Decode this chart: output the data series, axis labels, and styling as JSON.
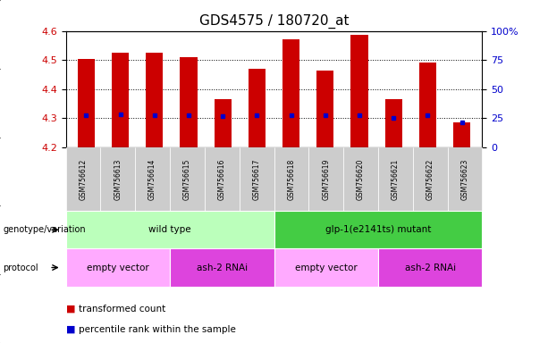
{
  "title": "GDS4575 / 180720_at",
  "samples": [
    "GSM756612",
    "GSM756613",
    "GSM756614",
    "GSM756615",
    "GSM756616",
    "GSM756617",
    "GSM756618",
    "GSM756619",
    "GSM756620",
    "GSM756621",
    "GSM756622",
    "GSM756623"
  ],
  "bar_tops": [
    4.505,
    4.525,
    4.525,
    4.51,
    4.365,
    4.47,
    4.57,
    4.465,
    4.585,
    4.365,
    4.49,
    4.285
  ],
  "bar_bottom": 4.2,
  "blue_dots": [
    4.312,
    4.315,
    4.312,
    4.312,
    4.308,
    4.31,
    4.312,
    4.312,
    4.312,
    4.3,
    4.312,
    4.285
  ],
  "ylim": [
    4.2,
    4.6
  ],
  "right_ylim": [
    0,
    100
  ],
  "right_yticks": [
    0,
    25,
    50,
    75,
    100
  ],
  "right_yticklabels": [
    "0",
    "25",
    "50",
    "75",
    "100%"
  ],
  "left_yticks": [
    4.2,
    4.3,
    4.4,
    4.5,
    4.6
  ],
  "bar_color": "#cc0000",
  "dot_color": "#0000cc",
  "title_fontsize": 11,
  "genotype_label": "genotype/variation",
  "protocol_label": "protocol",
  "genotype_groups": [
    {
      "label": "wild type",
      "start": 0,
      "end": 6,
      "color": "#bbffbb"
    },
    {
      "label": "glp-1(e2141ts) mutant",
      "start": 6,
      "end": 12,
      "color": "#44cc44"
    }
  ],
  "protocol_groups": [
    {
      "label": "empty vector",
      "start": 0,
      "end": 3,
      "color": "#ffaaff"
    },
    {
      "label": "ash-2 RNAi",
      "start": 3,
      "end": 6,
      "color": "#dd44dd"
    },
    {
      "label": "empty vector",
      "start": 6,
      "end": 9,
      "color": "#ffaaff"
    },
    {
      "label": "ash-2 RNAi",
      "start": 9,
      "end": 12,
      "color": "#dd44dd"
    }
  ],
  "legend_items": [
    {
      "label": "transformed count",
      "color": "#cc0000"
    },
    {
      "label": "percentile rank within the sample",
      "color": "#0000cc"
    }
  ],
  "tick_label_bg": "#cccccc",
  "bar_width": 0.5
}
